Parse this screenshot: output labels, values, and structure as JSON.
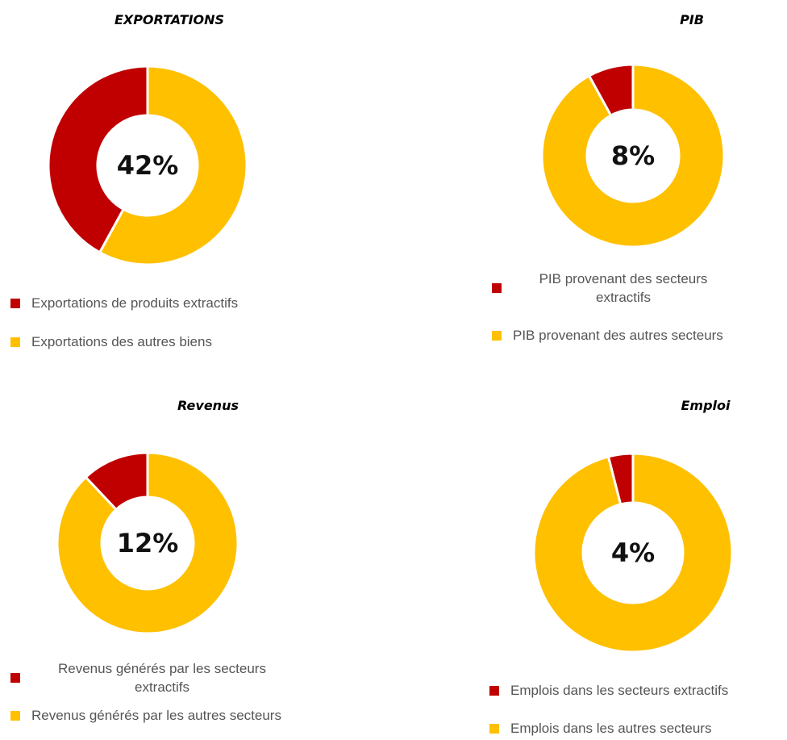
{
  "chart_data": [
    {
      "type": "donut",
      "title": "EXPORTATIONS",
      "categories": [
        "Exportations de produits extractifs",
        "Exportations des autres biens"
      ],
      "values": [
        42,
        58
      ],
      "value_labels": [
        "42%",
        null
      ],
      "colors": [
        "#c00000",
        "#ffc000"
      ]
    },
    {
      "type": "donut",
      "title": "PIB",
      "categories": [
        "PIB provenant des secteurs extractifs",
        "PIB provenant des autres secteurs"
      ],
      "values": [
        8,
        92
      ],
      "value_labels": [
        "8%",
        null
      ],
      "colors": [
        "#c00000",
        "#ffc000"
      ]
    },
    {
      "type": "donut",
      "title": "Revenus",
      "categories": [
        "Revenus générés par les secteurs extractifs",
        "Revenus générés par les autres secteurs"
      ],
      "values": [
        12,
        88
      ],
      "value_labels": [
        "12%",
        null
      ],
      "colors": [
        "#c00000",
        "#ffc000"
      ]
    },
    {
      "type": "donut",
      "title": "Emploi",
      "categories": [
        "Emplois dans les secteurs extractifs",
        "Emplois dans les autres secteurs"
      ],
      "values": [
        4,
        96
      ],
      "value_labels": [
        "4%",
        null
      ],
      "colors": [
        "#c00000",
        "#ffc000"
      ]
    }
  ]
}
